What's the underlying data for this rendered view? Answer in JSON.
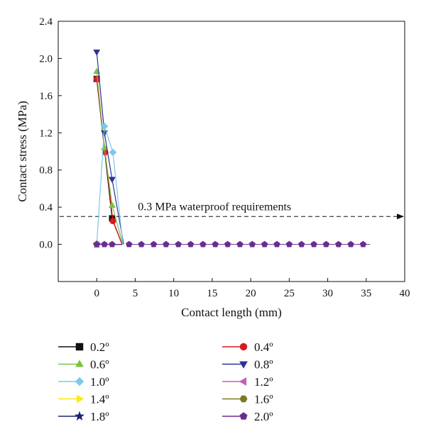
{
  "chart_data": {
    "type": "line",
    "xlabel": "Contact length (mm)",
    "ylabel": "Contact stress (MPa)",
    "xlim": [
      -5,
      40
    ],
    "ylim": [
      -0.4,
      2.4
    ],
    "xticks": [
      0,
      5,
      10,
      15,
      20,
      25,
      30,
      35,
      40
    ],
    "yticks": [
      0.0,
      0.4,
      0.8,
      1.2,
      1.6,
      2.0,
      2.4
    ],
    "xtick_labels": [
      "0",
      "5",
      "10",
      "15",
      "20",
      "25",
      "30",
      "35",
      "40"
    ],
    "ytick_labels": [
      "0.0",
      "0.4",
      "0.8",
      "1.2",
      "1.6",
      "2.0",
      "2.4"
    ],
    "grid": false,
    "legend_position": "bottom",
    "annotation": {
      "text": "0.3 MPa waterproof requirements",
      "y": 0.3,
      "x_from": -5,
      "x_to": 40,
      "style": "dashed-arrow"
    },
    "tail": {
      "x_start": 4.2,
      "x_end": 35.5,
      "step": 1.6,
      "y": 0.0
    },
    "series": [
      {
        "name": "0.2º",
        "color": "#111111",
        "marker": "square",
        "points": [
          [
            0,
            1.78
          ],
          [
            2.0,
            0.28
          ],
          [
            3.3,
            0.0
          ]
        ]
      },
      {
        "name": "0.4º",
        "color": "#d71920",
        "marker": "circle",
        "points": [
          [
            0,
            1.78
          ],
          [
            1.1,
            0.99
          ],
          [
            2.1,
            0.25
          ],
          [
            3.3,
            0.0
          ]
        ]
      },
      {
        "name": "0.6º",
        "color": "#7dc142",
        "marker": "triangle-up",
        "points": [
          [
            0,
            1.86
          ],
          [
            1.0,
            1.04
          ],
          [
            2.0,
            0.42
          ],
          [
            3.4,
            0.0
          ]
        ]
      },
      {
        "name": "0.8º",
        "color": "#2e3192",
        "marker": "triangle-down",
        "points": [
          [
            0,
            2.07
          ],
          [
            1.0,
            1.2
          ],
          [
            2.0,
            0.7
          ],
          [
            3.5,
            0.0
          ]
        ]
      },
      {
        "name": "1.0º",
        "color": "#7ec8e8",
        "marker": "diamond",
        "points": [
          [
            0,
            0.0
          ],
          [
            1.0,
            1.27
          ],
          [
            2.1,
            0.99
          ],
          [
            3.4,
            0.0
          ]
        ]
      },
      {
        "name": "1.2º",
        "color": "#c45fb3",
        "marker": "triangle-left",
        "points": [
          [
            0,
            0.0
          ],
          [
            3.3,
            0.0
          ]
        ]
      },
      {
        "name": "1.4º",
        "color": "#ffea00",
        "marker": "triangle-right",
        "points": [
          [
            0,
            0.0
          ],
          [
            3.3,
            0.0
          ]
        ]
      },
      {
        "name": "1.6º",
        "color": "#7a7a1f",
        "marker": "hexagon",
        "points": [
          [
            0,
            0.0
          ],
          [
            3.3,
            0.0
          ]
        ]
      },
      {
        "name": "1.8º",
        "color": "#1b2470",
        "marker": "star",
        "points": [
          [
            0,
            0.0
          ],
          [
            3.3,
            0.0
          ]
        ]
      },
      {
        "name": "2.0º",
        "color": "#6b2c91",
        "marker": "pentagon",
        "points": [
          [
            0,
            0.0
          ],
          [
            1.0,
            0.0
          ],
          [
            2.0,
            0.0
          ],
          [
            3.3,
            0.0
          ]
        ]
      }
    ]
  }
}
